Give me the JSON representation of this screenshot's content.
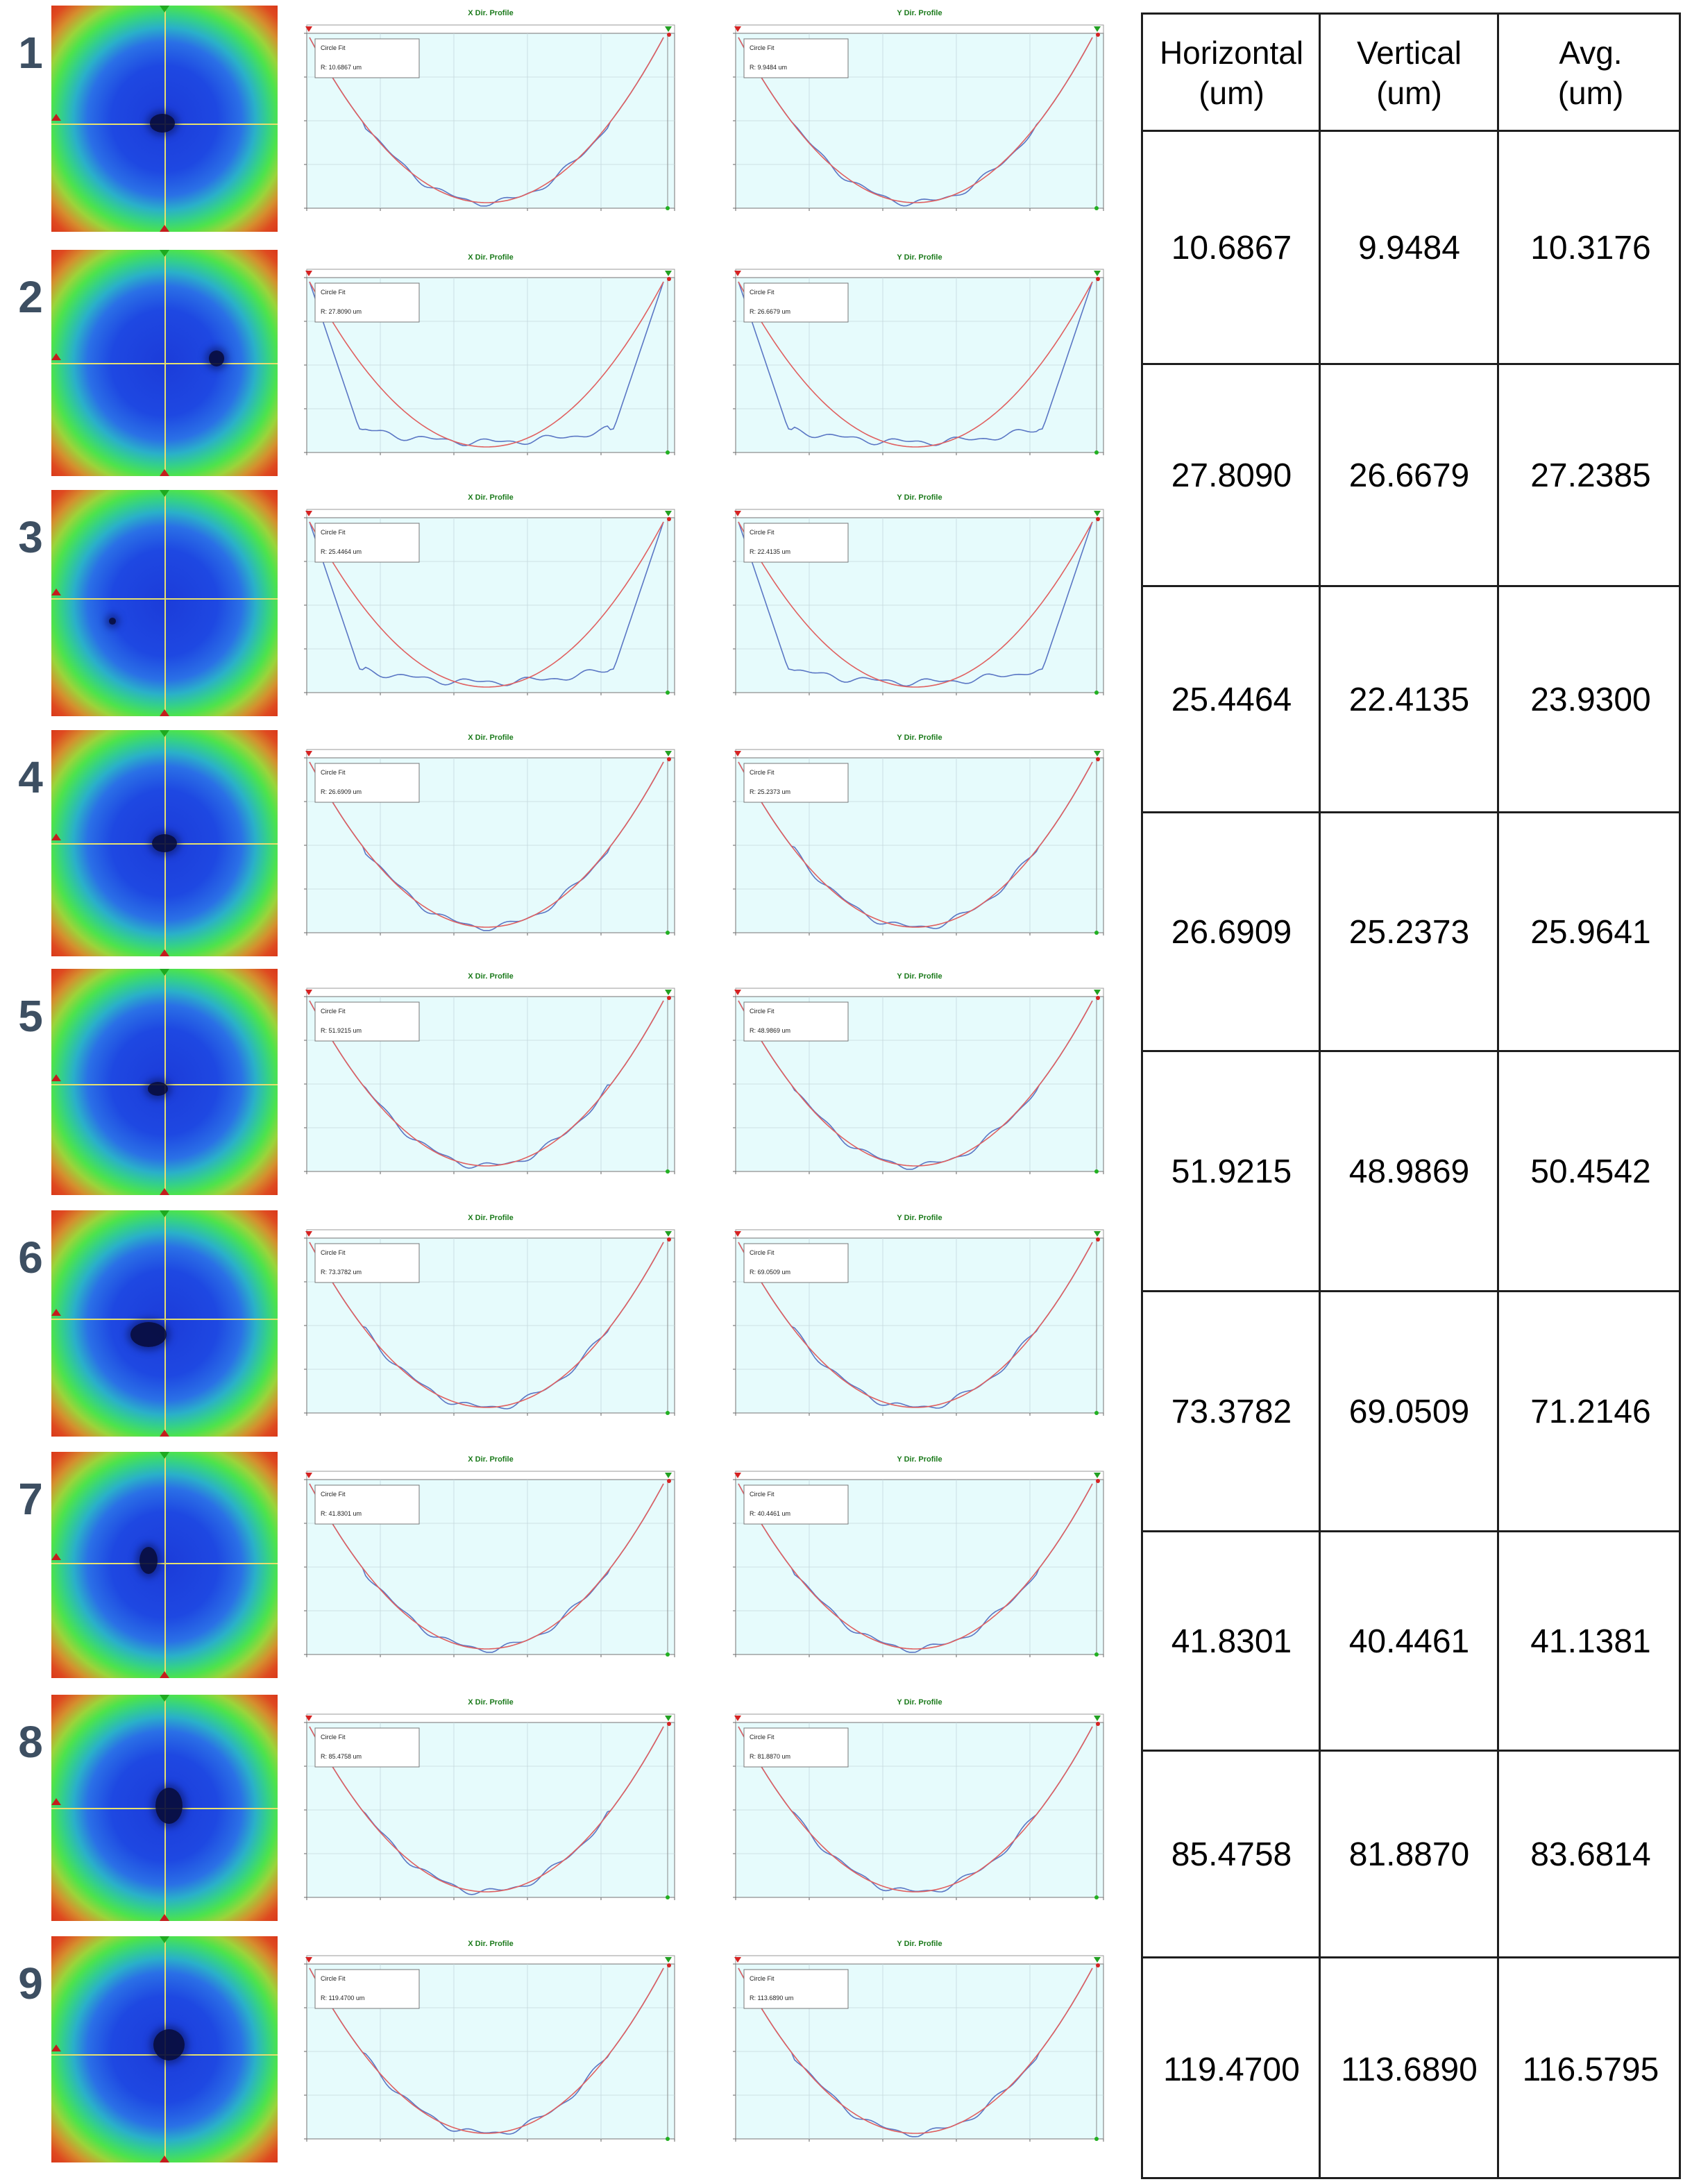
{
  "figure": {
    "rows": [
      {
        "num": "1",
        "x_plot": {
          "title": "X Dir. Profile",
          "fit_label": "Circle Fit",
          "fit_value": "R: 10.6867 um"
        },
        "y_plot": {
          "title": "Y Dir. Profile",
          "fit_label": "Circle Fit",
          "fit_value": "R: 9.9484 um"
        },
        "horizontal": "10.6867",
        "vertical": "9.9484",
        "avg": "10.3176"
      },
      {
        "num": "2",
        "x_plot": {
          "title": "X Dir. Profile",
          "fit_label": "Circle Fit",
          "fit_value": "R: 27.8090 um"
        },
        "y_plot": {
          "title": "Y Dir. Profile",
          "fit_label": "Circle Fit",
          "fit_value": "R: 26.6679 um"
        },
        "horizontal": "27.8090",
        "vertical": "26.6679",
        "avg": "27.2385"
      },
      {
        "num": "3",
        "x_plot": {
          "title": "X Dir. Profile",
          "fit_label": "Circle Fit",
          "fit_value": "R: 25.4464 um"
        },
        "y_plot": {
          "title": "Y Dir. Profile",
          "fit_label": "Circle Fit",
          "fit_value": "R: 22.4135 um"
        },
        "horizontal": "25.4464",
        "vertical": "22.4135",
        "avg": "23.9300"
      },
      {
        "num": "4",
        "x_plot": {
          "title": "X Dir. Profile",
          "fit_label": "Circle Fit",
          "fit_value": "R: 26.6909 um"
        },
        "y_plot": {
          "title": "Y Dir. Profile",
          "fit_label": "Circle Fit",
          "fit_value": "R: 25.2373 um"
        },
        "horizontal": "26.6909",
        "vertical": "25.2373",
        "avg": "25.9641"
      },
      {
        "num": "5",
        "x_plot": {
          "title": "X Dir. Profile",
          "fit_label": "Circle Fit",
          "fit_value": "R: 51.9215 um"
        },
        "y_plot": {
          "title": "Y Dir. Profile",
          "fit_label": "Circle Fit",
          "fit_value": "R: 48.9869 um"
        },
        "horizontal": "51.9215",
        "vertical": "48.9869",
        "avg": "50.4542"
      },
      {
        "num": "6",
        "x_plot": {
          "title": "X Dir. Profile",
          "fit_label": "Circle Fit",
          "fit_value": "R: 73.3782 um"
        },
        "y_plot": {
          "title": "Y Dir. Profile",
          "fit_label": "Circle Fit",
          "fit_value": "R: 69.0509 um"
        },
        "horizontal": "73.3782",
        "vertical": "69.0509",
        "avg": "71.2146"
      },
      {
        "num": "7",
        "x_plot": {
          "title": "X Dir. Profile",
          "fit_label": "Circle Fit",
          "fit_value": "R: 41.8301 um"
        },
        "y_plot": {
          "title": "Y Dir. Profile",
          "fit_label": "Circle Fit",
          "fit_value": "R: 40.4461 um"
        },
        "horizontal": "41.8301",
        "vertical": "40.4461",
        "avg": "41.1381"
      },
      {
        "num": "8",
        "x_plot": {
          "title": "X Dir. Profile",
          "fit_label": "Circle Fit",
          "fit_value": "R: 85.4758 um"
        },
        "y_plot": {
          "title": "Y Dir. Profile",
          "fit_label": "Circle Fit",
          "fit_value": "R: 81.8870 um"
        },
        "horizontal": "85.4758",
        "vertical": "81.8870",
        "avg": "83.6814"
      },
      {
        "num": "9",
        "x_plot": {
          "title": "X Dir. Profile",
          "fit_label": "Circle Fit",
          "fit_value": "R: 119.4700 um"
        },
        "y_plot": {
          "title": "Y Dir. Profile",
          "fit_label": "Circle Fit",
          "fit_value": "R: 113.6890 um"
        },
        "horizontal": "119.4700",
        "vertical": "113.6890",
        "avg": "116.5795"
      }
    ]
  },
  "table": {
    "headers": [
      "Horizontal\n(um)",
      "Vertical\n(um)",
      "Avg.\n(um)"
    ]
  },
  "colors": {
    "map_blue": "#1e48e2",
    "map_green": "#4de34c",
    "map_red": "#d9381a",
    "plot_background": "#e6fbfc",
    "measured_profile": "#5a76c4",
    "fit_curve": "#e06060",
    "plot_title": "#1b7a1b",
    "row_number": "#3d4f62",
    "crosshair": "#e6e06e"
  },
  "icons": [
    "red-triangle-marker-icon",
    "green-triangle-marker-icon",
    "red-dot-icon",
    "green-dot-icon"
  ]
}
